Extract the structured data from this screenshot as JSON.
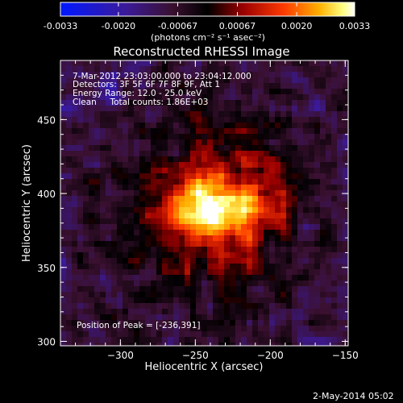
{
  "chart_data": {
    "type": "heatmap",
    "title": "Reconstructed RHESSI Image",
    "colorbar": {
      "min": -0.0033,
      "max": 0.0033,
      "colormap": "blue-purple-red-yellow-white",
      "ticks": [
        "-0.0033",
        "-0.0020",
        "-0.00067",
        "0.00067",
        "0.0020",
        "0.0033"
      ],
      "units_label": "(photons cm⁻² s⁻¹ asec⁻²)"
    },
    "info_lines": [
      "7-Mar-2012 23:03:00.000 to 23:04:12.000",
      "Detectors: 3F 5F 6F 7F 8F 9F, Att 1",
      "Energy Range: 12.0 - 25.0 keV",
      "Clean     Total counts: 1.86E+03"
    ],
    "peak_label": "Position of Peak = [-236,391]",
    "peak": {
      "x": -236,
      "y": 391
    },
    "xlabel": "Heliocentric X (arcsec)",
    "ylabel": "Heliocentric Y (arcsec)",
    "xlim": [
      -340,
      -148
    ],
    "ylim": [
      297,
      490
    ],
    "x_ticks": [
      -300,
      -250,
      -200,
      -150
    ],
    "x_tick_labels": [
      "−300",
      "−250",
      "−200",
      "−150"
    ],
    "y_ticks": [
      300,
      350,
      400,
      450
    ],
    "y_tick_labels": [
      "300",
      "350",
      "400",
      "450"
    ]
  },
  "timestamp": "2-May-2014 05:02"
}
